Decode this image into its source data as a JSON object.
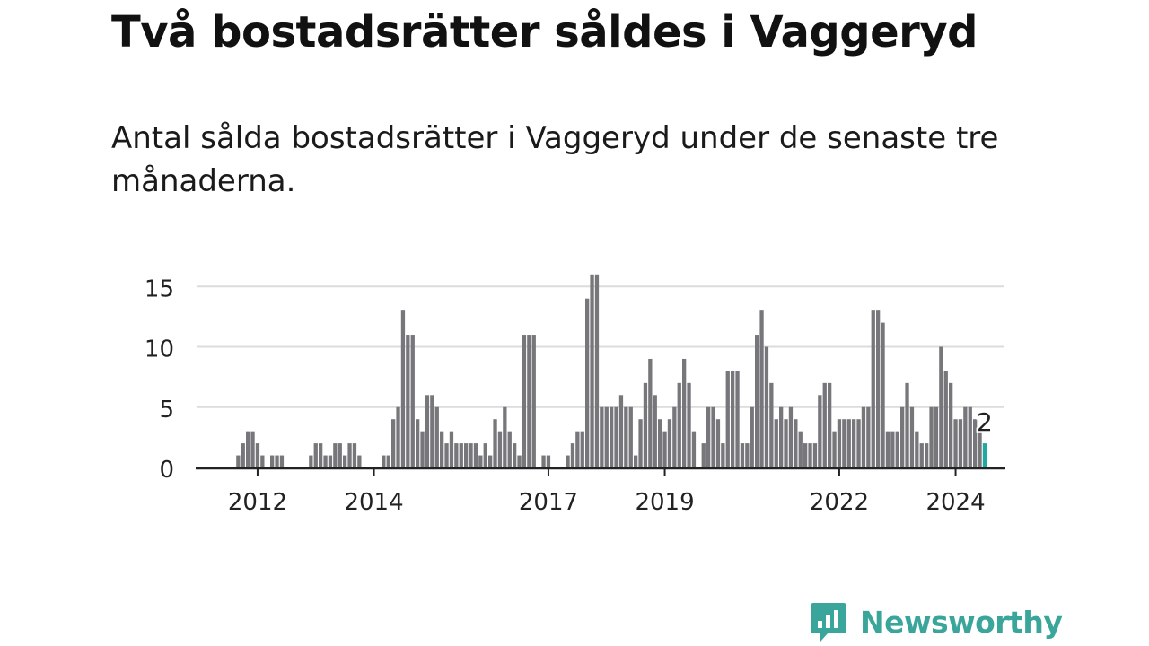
{
  "title": "Två bostadsrätter såldes i Vaggeryd",
  "subtitle": "Antal sålda bostadsrätter i Vaggeryd under de senaste tre månaderna.",
  "logo": {
    "text": "Newsworthy",
    "color": "#3aa59a",
    "icon": "bar-chart-speech-bubble-icon"
  },
  "colors": {
    "bar": "#77767a",
    "highlight": "#22a8a0",
    "grid": "#dcdcdc",
    "axis": "#222222"
  },
  "chart_data": {
    "type": "bar",
    "title": "",
    "xlabel": "",
    "ylabel": "",
    "ylim": [
      0,
      16
    ],
    "yticks": [
      0,
      5,
      10,
      15
    ],
    "xtick_labels": [
      "2012",
      "2014",
      "2017",
      "2019",
      "2022",
      "2024"
    ],
    "grid": true,
    "period_start": "2011-01",
    "interval": "month",
    "highlight_label": "2",
    "values": [
      0,
      0,
      0,
      0,
      0,
      0,
      0,
      0,
      1,
      2,
      3,
      3,
      2,
      1,
      0,
      1,
      1,
      1,
      0,
      0,
      0,
      0,
      0,
      1,
      2,
      2,
      1,
      1,
      2,
      2,
      1,
      2,
      2,
      1,
      0,
      0,
      0,
      0,
      1,
      1,
      4,
      5,
      13,
      11,
      11,
      4,
      3,
      6,
      6,
      5,
      3,
      2,
      3,
      2,
      2,
      2,
      2,
      2,
      1,
      2,
      1,
      4,
      3,
      5,
      3,
      2,
      1,
      11,
      11,
      11,
      0,
      1,
      1,
      0,
      0,
      0,
      1,
      2,
      3,
      3,
      14,
      16,
      16,
      5,
      5,
      5,
      5,
      6,
      5,
      5,
      1,
      4,
      7,
      9,
      6,
      4,
      3,
      4,
      5,
      7,
      9,
      7,
      3,
      0,
      2,
      5,
      5,
      4,
      2,
      8,
      8,
      8,
      2,
      2,
      5,
      11,
      13,
      10,
      7,
      4,
      5,
      4,
      5,
      4,
      3,
      2,
      2,
      2,
      6,
      7,
      7,
      3,
      4,
      4,
      4,
      4,
      4,
      5,
      5,
      13,
      13,
      12,
      3,
      3,
      3,
      5,
      7,
      5,
      3,
      2,
      2,
      5,
      5,
      10,
      8,
      7,
      4,
      4,
      5,
      5,
      4,
      3,
      2
    ]
  }
}
